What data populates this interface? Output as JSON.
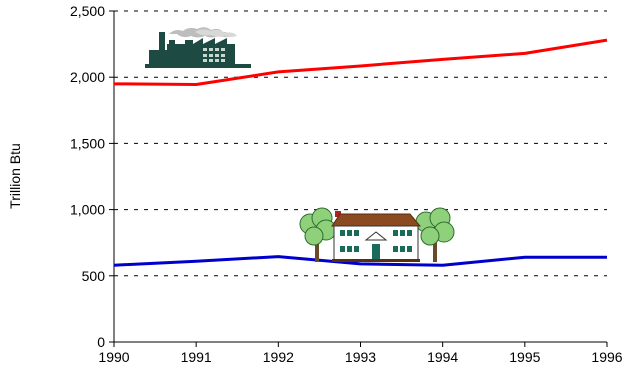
{
  "chart_data": {
    "type": "line",
    "title": "",
    "xlabel": "",
    "ylabel": "Trillion Btu",
    "x": [
      1990,
      1991,
      1992,
      1993,
      1994,
      1995,
      1996
    ],
    "ylim": [
      0,
      2500
    ],
    "yticks": [
      0,
      500,
      1000,
      1500,
      2000,
      2500
    ],
    "ytick_labels": [
      "0",
      "500",
      "1,000",
      "1,500",
      "2,000",
      "2,500"
    ],
    "xtick_labels": [
      "1990",
      "1991",
      "1992",
      "1993",
      "1994",
      "1995",
      "1996"
    ],
    "grid": "horizontal dashed",
    "legend": "none (pictorial icons: factory for industrial, house for residential)",
    "series": [
      {
        "icon": "factory-icon",
        "color": "#ff0000",
        "values": [
          1950,
          1945,
          2040,
          2085,
          2135,
          2180,
          2280
        ]
      },
      {
        "icon": "house-icon",
        "color": "#0000cc",
        "values": [
          580,
          610,
          645,
          590,
          580,
          640,
          640
        ]
      }
    ]
  }
}
